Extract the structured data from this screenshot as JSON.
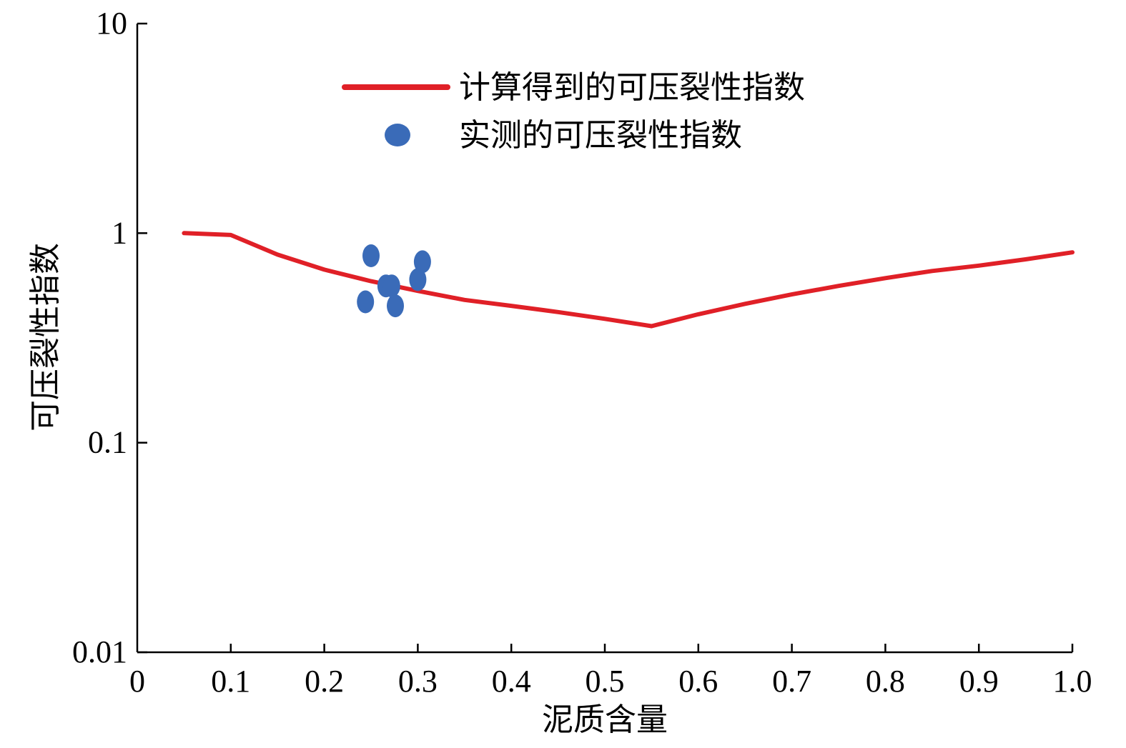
{
  "chart_data": {
    "type": "line",
    "xlabel": "泥质含量",
    "ylabel": "可压裂性指数",
    "xlim": [
      0,
      1.0
    ],
    "ylim": [
      0.01,
      10
    ],
    "yscale": "log",
    "x_ticks": [
      "0",
      "0.1",
      "0.2",
      "0.3",
      "0.4",
      "0.5",
      "0.6",
      "0.7",
      "0.8",
      "0.9",
      "1.0"
    ],
    "y_ticks": [
      "0.01",
      "0.1",
      "1",
      "10"
    ],
    "legend_position": "top-center",
    "grid": false,
    "series": [
      {
        "name": "计算得到的可压裂性指数",
        "kind": "line",
        "color": "#e02027",
        "x": [
          0.05,
          0.1,
          0.15,
          0.2,
          0.25,
          0.3,
          0.35,
          0.4,
          0.45,
          0.5,
          0.55,
          0.6,
          0.65,
          0.7,
          0.75,
          0.8,
          0.85,
          0.9,
          0.95,
          1.0
        ],
        "y": [
          1.0,
          0.98,
          0.79,
          0.67,
          0.59,
          0.53,
          0.48,
          0.45,
          0.42,
          0.39,
          0.36,
          0.41,
          0.46,
          0.51,
          0.56,
          0.61,
          0.66,
          0.7,
          0.75,
          0.81
        ]
      },
      {
        "name": "实测的可压裂性指数",
        "kind": "scatter",
        "color": "#3a6bb8",
        "x": [
          0.244,
          0.25,
          0.266,
          0.272,
          0.276,
          0.3,
          0.305
        ],
        "y": [
          0.47,
          0.78,
          0.56,
          0.56,
          0.45,
          0.6,
          0.73
        ]
      }
    ]
  }
}
